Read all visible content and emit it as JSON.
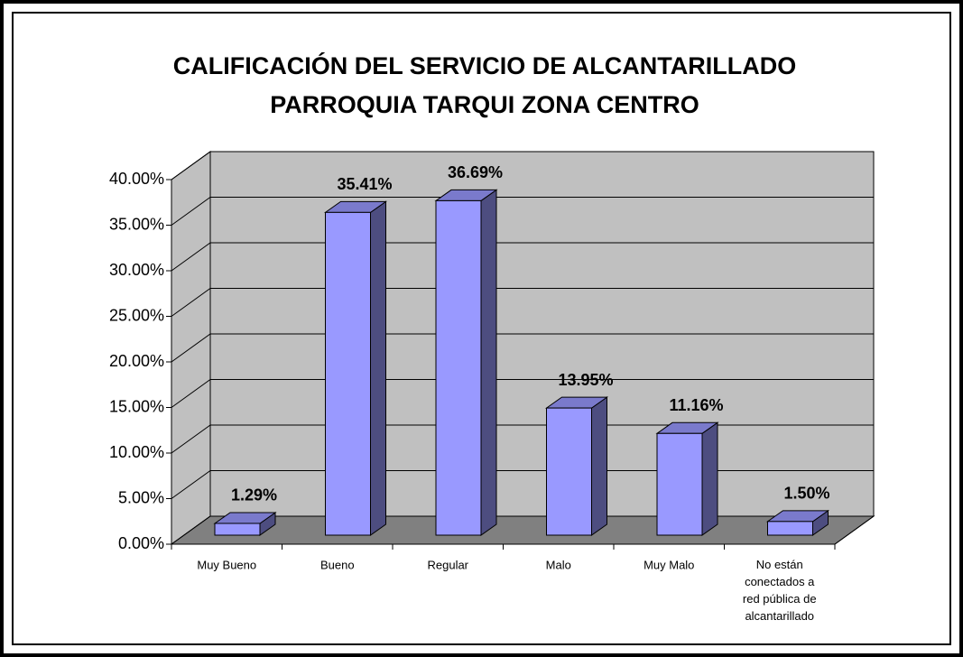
{
  "chart_data": {
    "type": "bar3d",
    "title": "CALIFICACIÓN DEL SERVICIO DE ALCANTARILLADO",
    "subtitle": "PARROQUIA TARQUI ZONA CENTRO",
    "categories": [
      "Muy Bueno",
      "Bueno",
      "Regular",
      "Malo",
      "Muy Malo",
      "No están conectados a red pública de alcantarillado"
    ],
    "values": [
      1.29,
      35.41,
      36.69,
      13.95,
      11.16,
      1.5
    ],
    "value_labels": [
      "1.29%",
      "35.41%",
      "36.69%",
      "13.95%",
      "11.16%",
      "1.50%"
    ],
    "color": "#9999ff",
    "ylim": [
      0,
      40
    ],
    "yticks": [
      {
        "value": 0,
        "label": "0.00%"
      },
      {
        "value": 5,
        "label": "5.00%"
      },
      {
        "value": 10,
        "label": "10.00%"
      },
      {
        "value": 15,
        "label": "15.00%"
      },
      {
        "value": 20,
        "label": "20.00%"
      },
      {
        "value": 25,
        "label": "25.00%"
      },
      {
        "value": 30,
        "label": "30.00%"
      },
      {
        "value": 35,
        "label": "35.00%"
      },
      {
        "value": 40,
        "label": "40.00%"
      }
    ],
    "grid": true
  }
}
